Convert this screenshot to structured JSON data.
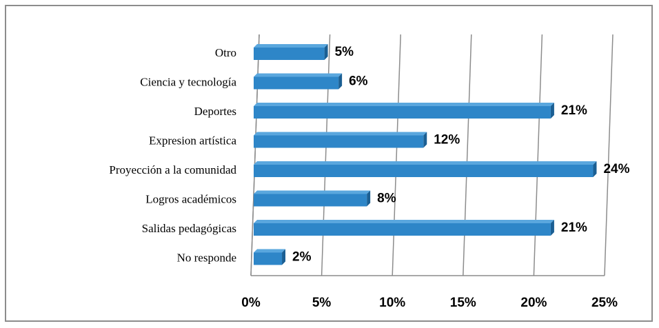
{
  "chart_data": {
    "type": "bar",
    "orientation": "horizontal",
    "categories": [
      "Otro",
      "Ciencia y tecnología",
      "Deportes",
      "Expresion artística",
      "Proyección a la comunidad",
      "Logros académicos",
      "Salidas pedagógicas",
      "No responde"
    ],
    "values": [
      5,
      6,
      21,
      12,
      24,
      8,
      21,
      2
    ],
    "value_labels": [
      "5%",
      "6%",
      "21%",
      "12%",
      "24%",
      "8%",
      "21%",
      "2%"
    ],
    "color": "#2e86c8",
    "xlim": [
      0,
      25
    ],
    "xticks": [
      {
        "value": 0,
        "label": "0%"
      },
      {
        "value": 5,
        "label": "5%"
      },
      {
        "value": 10,
        "label": "10%"
      },
      {
        "value": 15,
        "label": "15%"
      },
      {
        "value": 20,
        "label": "20%"
      },
      {
        "value": 25,
        "label": "25%"
      }
    ],
    "grid": true
  }
}
